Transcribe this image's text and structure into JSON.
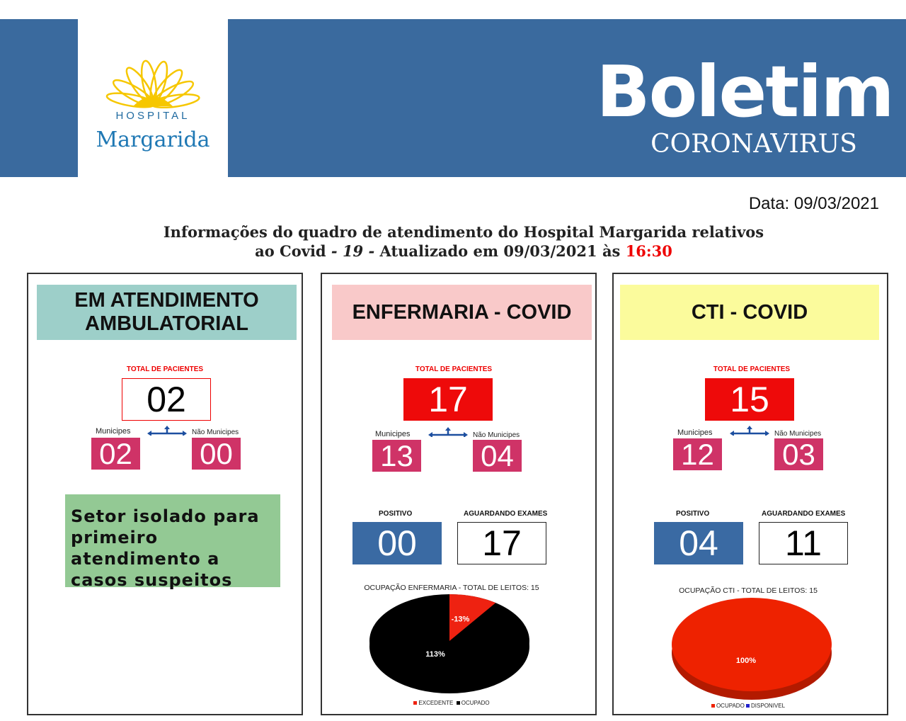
{
  "header": {
    "logo_small": "HOSPITAL",
    "logo_name": "Margarida",
    "title": "Boletim",
    "subtitle": "CORONAVIRUS",
    "brand_color": "#3a6a9e"
  },
  "date": "Data: 09/03/2021",
  "info": {
    "line1": "Informações do quadro de atendimento do Hospital Margarida relativos",
    "line2_a": "ao Covid",
    "line2_b": "- 19 -",
    "line2_c": "Atualizado em 09/03/2021 às",
    "time": "16:30"
  },
  "ambulatorial": {
    "title": "EM ATENDIMENTO AMBULATORIAL",
    "total_label": "TOTAL DE PACIENTES",
    "total": "02",
    "municipes_label": "Municipes",
    "municipes": "02",
    "nao_municipes_label": "Não Municipes",
    "nao_municipes": "00",
    "note": "Setor isolado para primeiro atendimento a casos suspeitos",
    "header_color": "#9dcfc9"
  },
  "enfermaria": {
    "title": "ENFERMARIA - COVID",
    "total_label": "TOTAL DE PACIENTES",
    "total": "17",
    "municipes_label": "Municipes",
    "municipes": "13",
    "nao_municipes_label": "Não Municipes",
    "nao_municipes": "04",
    "positivo_label": "POSITIVO",
    "positivo": "00",
    "aguardando_label": "AGUARDANDO EXAMES",
    "aguardando": "17",
    "header_color": "#f9c9c9"
  },
  "cti": {
    "title": "CTI - COVID",
    "total_label": "TOTAL DE PACIENTES",
    "total": "15",
    "municipes_label": "Municipes",
    "municipes": "12",
    "nao_municipes_label": "Não Municipes",
    "nao_municipes": "03",
    "positivo_label": "POSITIVO",
    "positivo": "04",
    "aguardando_label": "AGUARDANDO EXAMES",
    "aguardando": "11",
    "header_color": "#fbfb9c"
  },
  "chart_data": [
    {
      "type": "pie",
      "title": "OCUPAÇÃO ENFERMARIA - TOTAL DE LEITOS: 15",
      "slices": [
        {
          "name": "EXCEDENTE",
          "value": -13,
          "label": "-13%",
          "color": "#ee2211"
        },
        {
          "name": "OCUPADO",
          "value": 113,
          "label": "113%",
          "color": "#000000"
        }
      ],
      "legend": [
        "EXCEDENTE",
        "OCUPADO"
      ]
    },
    {
      "type": "pie",
      "title": "OCUPAÇÃO CTI - TOTAL DE LEITOS: 15",
      "slices": [
        {
          "name": "OCUPADO",
          "value": 100,
          "label": "100%",
          "color": "#ee2200"
        },
        {
          "name": "DISPONIVEL",
          "value": 0,
          "label": "",
          "color": "#2222cc"
        }
      ],
      "legend": [
        "OCUPADO",
        "DISPONIVEL"
      ]
    }
  ]
}
